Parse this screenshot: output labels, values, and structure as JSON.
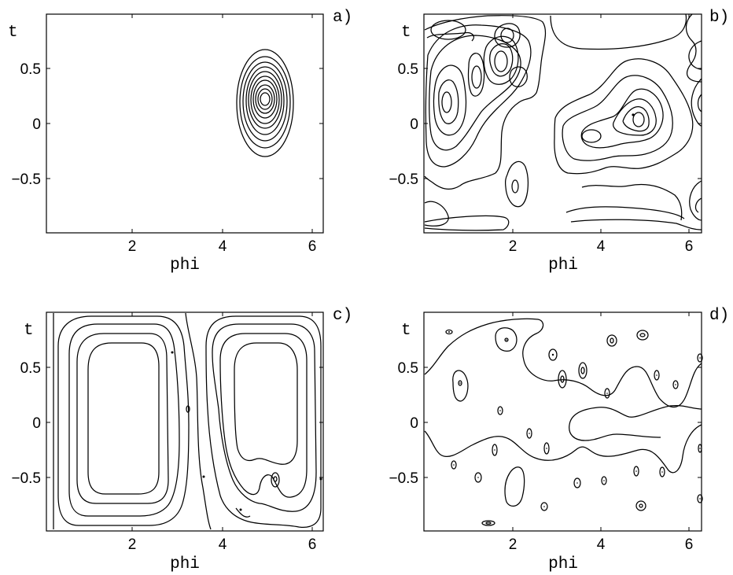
{
  "chart_data": [
    {
      "type": "contour",
      "panel_label": "a)",
      "xlabel": "phi",
      "ylabel": "t",
      "xlim": [
        0.1,
        6.28
      ],
      "ylim": [
        -0.98,
        0.98
      ],
      "xticks": [
        2,
        4,
        6
      ],
      "yticks": [
        -0.5,
        0,
        0.5
      ],
      "ytick_labels": [
        "−0.5",
        "0",
        "0.5"
      ],
      "features": [
        {
          "kind": "nested-ovals",
          "center": [
            4.95,
            0.22
          ],
          "rx_outer": 0.63,
          "ry_outer": 0.47,
          "levels": 11
        }
      ]
    },
    {
      "type": "contour",
      "panel_label": "b)",
      "xlabel": "phi",
      "ylabel": "t",
      "xlim": [
        0.1,
        6.28
      ],
      "ylim": [
        -0.98,
        0.98
      ],
      "xticks": [
        2,
        4,
        6
      ],
      "yticks": [
        -0.5,
        0,
        0.5
      ],
      "ytick_labels": [
        "−0.5",
        "0",
        "0.5"
      ],
      "features": [
        {
          "kind": "nested-ovals",
          "center": [
            0.45,
            0.18
          ],
          "rx_outer": 0.35,
          "ry_outer": 0.55,
          "levels": 6
        },
        {
          "kind": "nested-ovals",
          "center": [
            0.95,
            0.38
          ],
          "rx_outer": 0.22,
          "ry_outer": 0.4,
          "levels": 5
        },
        {
          "kind": "nested-ovals",
          "center": [
            1.35,
            0.55
          ],
          "rx_outer": 0.28,
          "ry_outer": 0.35,
          "levels": 5
        },
        {
          "kind": "nested-ovals",
          "center": [
            1.75,
            0.72
          ],
          "rx_outer": 0.2,
          "ry_outer": 0.2,
          "levels": 3
        },
        {
          "kind": "nested-ovals",
          "center": [
            2.0,
            -0.58
          ],
          "rx_outer": 0.28,
          "ry_outer": 0.35,
          "levels": 2
        },
        {
          "kind": "nested-ovals",
          "center": [
            4.68,
            0.09
          ],
          "rx_outer": 1.0,
          "ry_outer": 0.62,
          "levels": 6
        },
        {
          "kind": "nested-ovals",
          "center": [
            3.75,
            -0.13
          ],
          "rx_outer": 0.25,
          "ry_outer": 0.14,
          "levels": 2
        }
      ]
    },
    {
      "type": "contour",
      "panel_label": "c)",
      "xlabel": "phi",
      "ylabel": "t",
      "xlim": [
        0.1,
        6.28
      ],
      "ylim": [
        -0.98,
        0.98
      ],
      "xticks": [
        2,
        4,
        6
      ],
      "yticks": [
        -0.5,
        0,
        0.5
      ],
      "ytick_labels": [
        "−0.5",
        "0",
        "0.5"
      ],
      "features": [
        {
          "kind": "nested-rounded-rects",
          "center": [
            1.75,
            -0.02
          ],
          "rx_outer": 1.65,
          "ry_outer": 0.93,
          "levels": 4
        },
        {
          "kind": "nested-rounded-rects",
          "center": [
            4.65,
            0.05
          ],
          "rx_outer": 1.55,
          "ry_outer": 0.9,
          "levels": 4
        },
        {
          "kind": "point",
          "x": 5.17,
          "y": -0.5
        },
        {
          "kind": "point",
          "x": 3.22,
          "y": 0.12
        }
      ]
    },
    {
      "type": "contour",
      "panel_label": "d)",
      "xlabel": "phi",
      "ylabel": "t",
      "xlim": [
        0.1,
        6.28
      ],
      "ylim": [
        -0.98,
        0.98
      ],
      "xticks": [
        2,
        4,
        6
      ],
      "yticks": [
        -0.5,
        0,
        0.5
      ],
      "ytick_labels": [
        "−0.5",
        "0",
        "0.5"
      ],
      "features": [
        {
          "kind": "zero-line-upper"
        },
        {
          "kind": "zero-line-lower"
        },
        {
          "kind": "points",
          "xy": [
            [
              0.62,
              0.82
            ],
            [
              0.82,
              0.37
            ],
            [
              1.8,
              0.75
            ],
            [
              2.9,
              0.62
            ],
            [
              3.0,
              0.38
            ],
            [
              3.48,
              0.47
            ],
            [
              4.2,
              0.73
            ],
            [
              4.92,
              0.78
            ],
            [
              6.22,
              0.6
            ],
            [
              5.22,
              0.44
            ],
            [
              5.72,
              0.35
            ],
            [
              4.12,
              0.27
            ],
            [
              1.65,
              0.11
            ],
            [
              2.55,
              -0.1
            ],
            [
              2.75,
              -0.23
            ],
            [
              1.55,
              -0.25
            ],
            [
              0.72,
              -0.38
            ],
            [
              1.2,
              -0.5
            ],
            [
              3.45,
              -0.55
            ],
            [
              4.12,
              -0.53
            ],
            [
              4.8,
              -0.45
            ],
            [
              5.4,
              -0.45
            ],
            [
              6.25,
              -0.7
            ],
            [
              2.72,
              -0.78
            ],
            [
              4.9,
              -0.77
            ],
            [
              1.95,
              -0.6
            ],
            [
              1.48,
              -0.92
            ],
            [
              6.25,
              -0.23
            ]
          ]
        }
      ]
    }
  ]
}
